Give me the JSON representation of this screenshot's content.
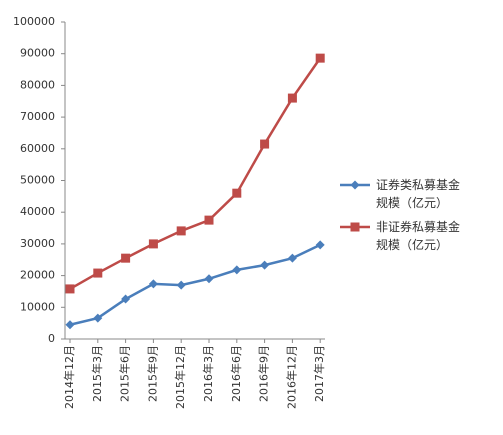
{
  "chart_data": {
    "type": "line",
    "categories": [
      "2014年12月",
      "2015年3月",
      "2015年6月",
      "2015年9月",
      "2015年12月",
      "2016年3月",
      "2016年6月",
      "2016年9月",
      "2016年12月",
      "2017年3月"
    ],
    "series": [
      {
        "name": "证券类私募基金规模（亿元）",
        "color": "#4a7ebb",
        "marker": "diamond",
        "values": [
          4500,
          6600,
          12600,
          17400,
          17000,
          19000,
          21800,
          23300,
          25500,
          29700
        ]
      },
      {
        "name": "非证券私募基金规模（亿元）",
        "color": "#be4b48",
        "marker": "square",
        "values": [
          15800,
          20800,
          25500,
          30000,
          34100,
          37500,
          46000,
          61500,
          76000,
          88600
        ]
      }
    ],
    "ylim": [
      0,
      100000
    ],
    "yticks": [
      0,
      10000,
      20000,
      30000,
      40000,
      50000,
      60000,
      70000,
      80000,
      90000,
      100000
    ],
    "grid": false
  }
}
